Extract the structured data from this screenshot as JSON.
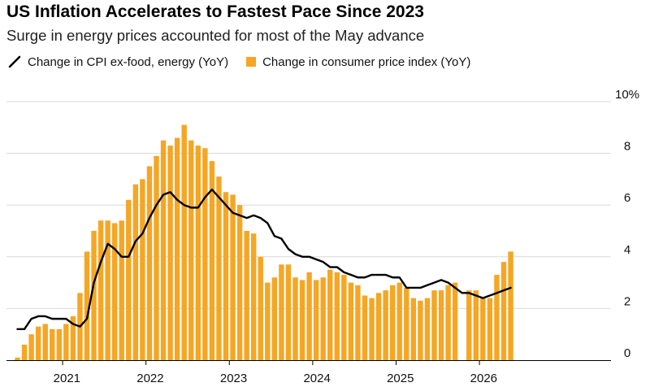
{
  "header": {
    "title": "US Inflation Accelerates to Fastest Pace Since 2023",
    "subtitle": "Surge in energy prices accounted for most of the May advance"
  },
  "legend": {
    "line_label": "Change in CPI ex-food, energy (YoY)",
    "bar_label": "Change in consumer price index (YoY)"
  },
  "colors": {
    "bar": "#f5a623",
    "line": "#000000",
    "grid": "#d9d9d9",
    "axis": "#000000"
  },
  "chart_data": {
    "type": "bar",
    "title": "US Inflation Accelerates to Fastest Pace Since 2023",
    "subtitle": "Surge in energy prices accounted for most of the May advance",
    "ylim": [
      0,
      10
    ],
    "yticks": [
      0,
      2,
      4,
      6,
      8,
      10
    ],
    "ytick_labels": [
      "0",
      "2",
      "4",
      "6",
      "8",
      "10%"
    ],
    "xtick_labels": [
      "2021",
      "2022",
      "2023",
      "2024",
      "2025",
      "2026"
    ],
    "x_start": "2020-06",
    "x_end": "2026-05",
    "grid": true,
    "legend_position": "top-left",
    "series": [
      {
        "name": "Change in consumer price index (YoY)",
        "type": "bar",
        "values": [
          0.1,
          0.6,
          1.0,
          1.3,
          1.4,
          1.2,
          1.2,
          1.4,
          1.7,
          2.6,
          4.2,
          5.0,
          5.4,
          5.4,
          5.3,
          5.4,
          6.2,
          6.8,
          7.0,
          7.5,
          7.9,
          8.5,
          8.3,
          8.6,
          9.1,
          8.5,
          8.3,
          8.2,
          7.7,
          7.1,
          6.5,
          6.4,
          6.0,
          5.0,
          4.9,
          4.0,
          3.0,
          3.2,
          3.7,
          3.7,
          3.2,
          3.1,
          3.4,
          3.1,
          3.2,
          3.5,
          3.4,
          3.3,
          3.0,
          2.9,
          2.5,
          2.4,
          2.6,
          2.7,
          2.9,
          3.0,
          2.8,
          2.4,
          2.3,
          2.4,
          2.7,
          2.7,
          2.9,
          3.0,
          null,
          2.7,
          2.7,
          2.4,
          2.4,
          3.3,
          3.8,
          4.2
        ],
        "note": "null = no data (gap in series)"
      },
      {
        "name": "Change in CPI ex-food, energy (YoY)",
        "type": "line",
        "values": [
          1.2,
          1.2,
          1.6,
          1.7,
          1.7,
          1.6,
          1.6,
          1.6,
          1.4,
          1.3,
          1.6,
          3.0,
          3.8,
          4.5,
          4.3,
          4.0,
          4.0,
          4.6,
          4.9,
          5.5,
          6.0,
          6.4,
          6.5,
          6.2,
          6.0,
          5.9,
          5.9,
          6.3,
          6.6,
          6.3,
          6.0,
          5.7,
          5.6,
          5.5,
          5.6,
          5.5,
          5.3,
          4.8,
          4.7,
          4.3,
          4.1,
          4.0,
          4.0,
          3.9,
          3.8,
          3.6,
          3.6,
          3.4,
          3.3,
          3.2,
          3.2,
          3.3,
          3.3,
          3.3,
          3.2,
          3.2,
          2.8,
          2.8,
          2.8,
          2.9,
          3.0,
          3.1,
          3.0,
          2.8,
          2.6,
          2.6,
          2.5,
          2.4,
          2.5,
          2.6,
          2.7,
          2.8
        ]
      }
    ]
  }
}
